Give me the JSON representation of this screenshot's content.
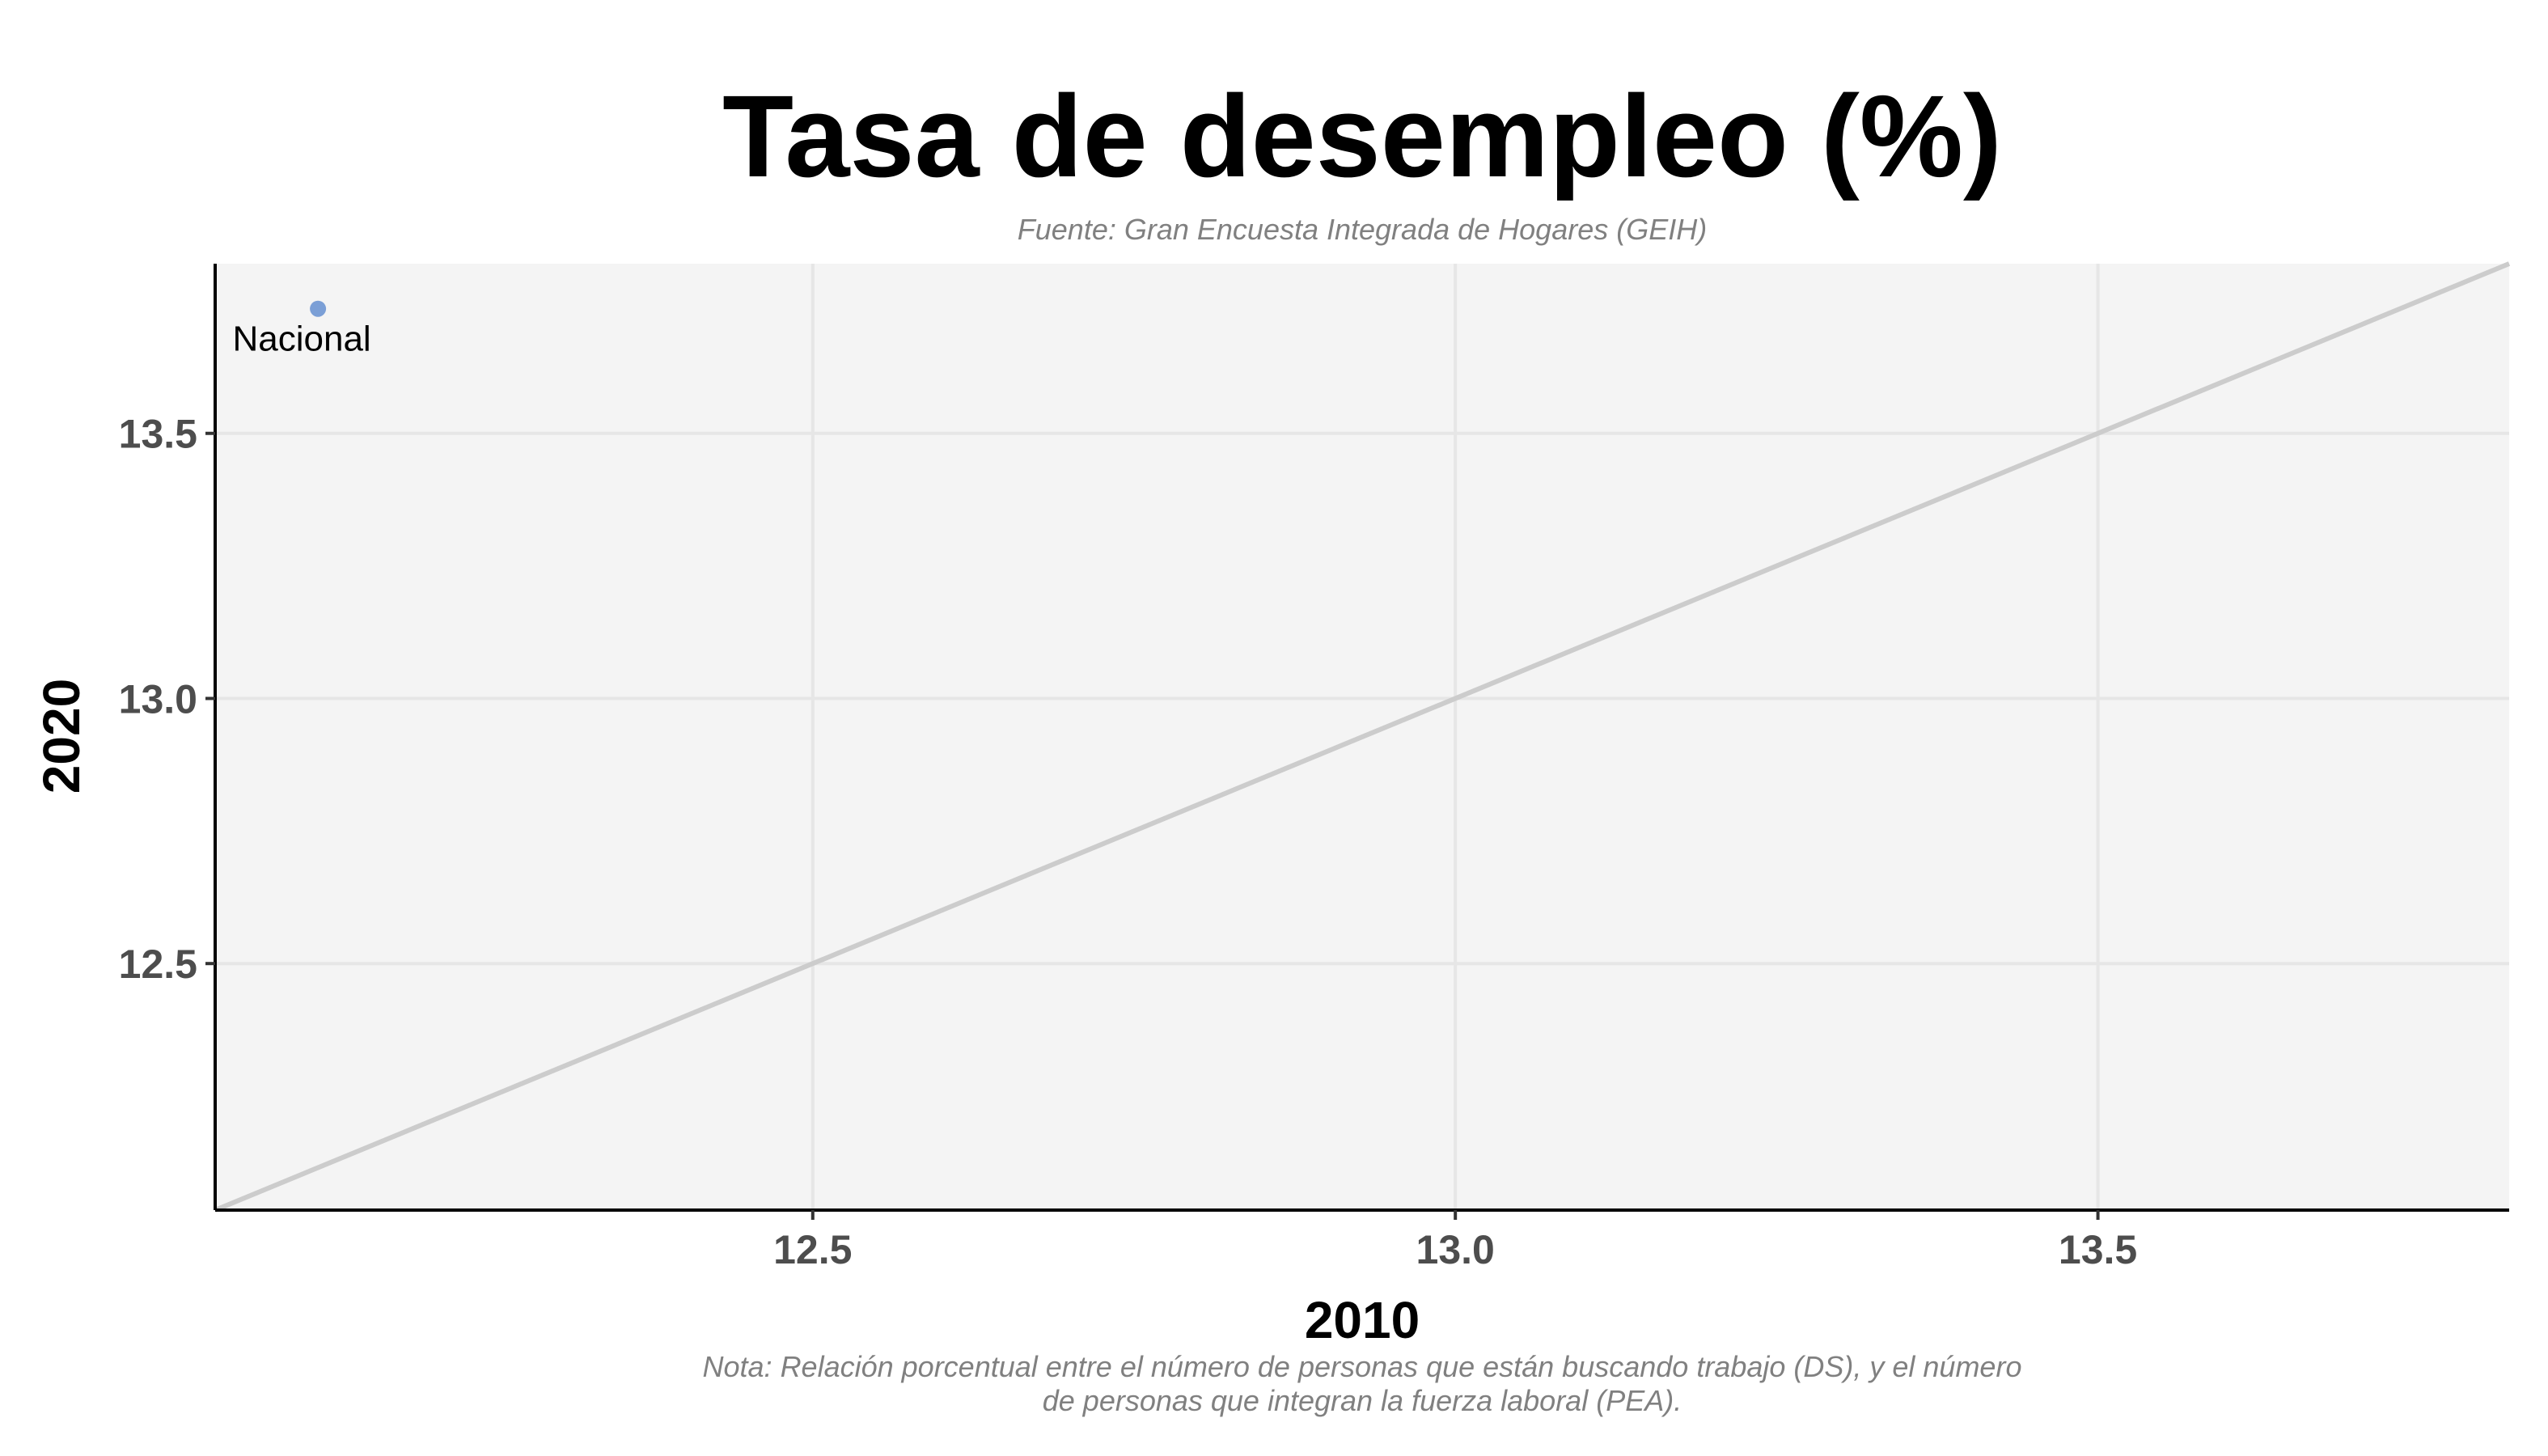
{
  "chart_data": {
    "type": "scatter",
    "title": "Tasa de desempleo (%)",
    "subtitle": "Fuente: Gran Encuesta Integrada de Hogares (GEIH)",
    "caption": [
      "Nota: Relación porcentual entre el número de personas que están buscando trabajo (DS), y el número",
      "de personas que integran la fuerza laboral (PEA)."
    ],
    "xlabel": "2010",
    "ylabel": "2020",
    "xlim": [
      12.035,
      13.82
    ],
    "ylim": [
      12.035,
      13.82
    ],
    "x_ticks": [
      "12.5",
      "13.0",
      "13.5"
    ],
    "y_ticks": [
      "12.5",
      "13.0",
      "13.5"
    ],
    "grid": true,
    "reference_line": "y = x",
    "points": [
      {
        "label": "Nacional",
        "x": 12.115,
        "y": 13.735
      }
    ],
    "colors": {
      "panel_background": "#f4f4f4",
      "grid": "#e6e6e6",
      "reference_line": "#cccccc",
      "point": "#7b9fd6"
    }
  }
}
